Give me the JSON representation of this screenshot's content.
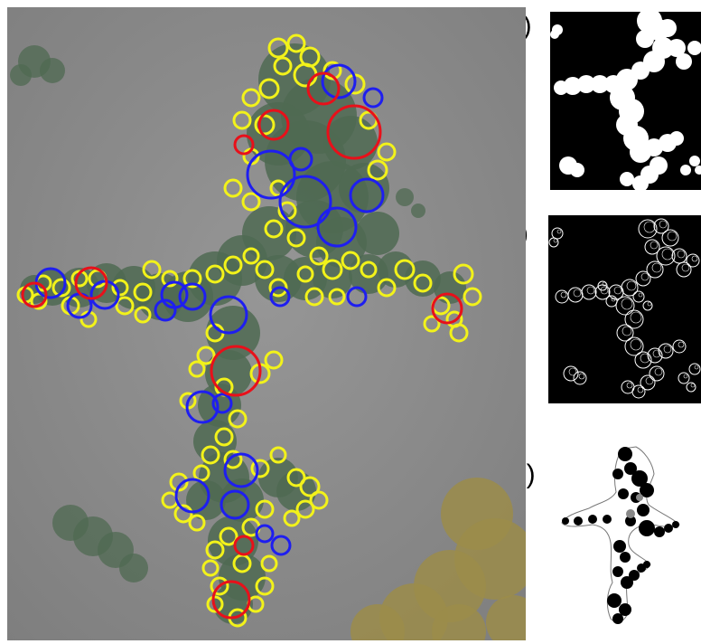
{
  "labels": {
    "a": "a)",
    "b": "b)",
    "c": "c)",
    "d": "d)"
  },
  "colors": {
    "background_grey": "#8e8e8e",
    "particle_green": "#4f6a52",
    "particle_olive": "#9b8c4a",
    "circle_yellow": "#f2f21a",
    "circle_red": "#e8101a",
    "circle_blue": "#1e1ef0",
    "mask_white": "#ffffff",
    "mask_black": "#000000",
    "silhouette_black": "#000000",
    "silhouette_grey": "#888888"
  },
  "circle_counts": {
    "red": 10,
    "blue": 21
  }
}
